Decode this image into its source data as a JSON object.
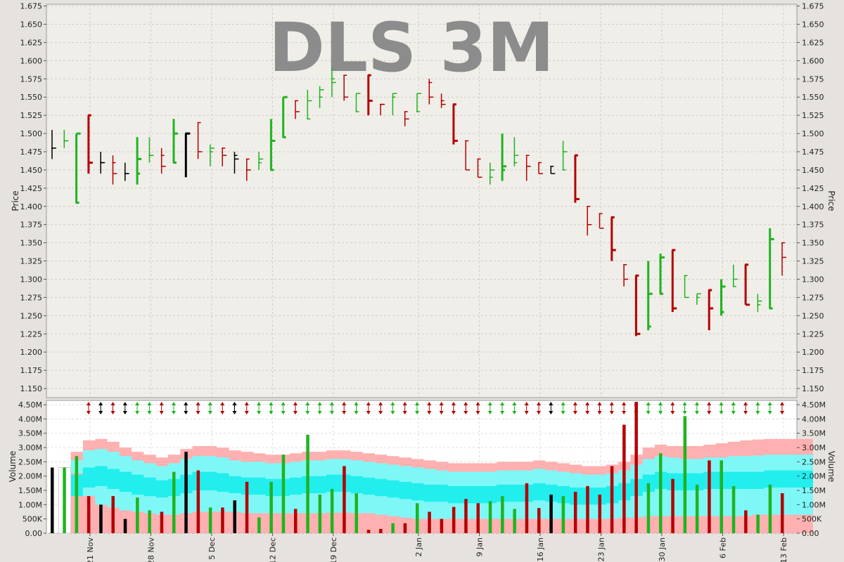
{
  "chart_data": [
    {
      "type": "ohlc",
      "title": "DLS 3M",
      "ylabel": "Price",
      "ylim": [
        1.1375,
        1.6775
      ],
      "yticks": [
        1.15,
        1.175,
        1.2,
        1.225,
        1.25,
        1.275,
        1.3,
        1.325,
        1.35,
        1.375,
        1.4,
        1.425,
        1.45,
        1.475,
        1.5,
        1.525,
        1.55,
        1.575,
        1.6,
        1.625,
        1.65,
        1.675
      ],
      "grid": true,
      "colors": {
        "up": "#1eb41e",
        "down": "#b40000",
        "neutral": "#000000"
      },
      "bars": [
        {
          "o": 1.48,
          "h": 1.505,
          "l": 1.465,
          "c": 1.48,
          "d": "n"
        },
        {
          "o": 1.49,
          "h": 1.505,
          "l": 1.48,
          "c": 1.49,
          "d": "u"
        },
        {
          "o": 1.405,
          "h": 1.5,
          "l": 1.405,
          "c": 1.5,
          "d": "u"
        },
        {
          "o": 1.525,
          "h": 1.525,
          "l": 1.445,
          "c": 1.46,
          "d": "r"
        },
        {
          "o": 1.46,
          "h": 1.475,
          "l": 1.445,
          "c": 1.46,
          "d": "n"
        },
        {
          "o": 1.46,
          "h": 1.47,
          "l": 1.43,
          "c": 1.445,
          "d": "r"
        },
        {
          "o": 1.445,
          "h": 1.46,
          "l": 1.435,
          "c": 1.445,
          "d": "n"
        },
        {
          "o": 1.445,
          "h": 1.495,
          "l": 1.43,
          "c": 1.465,
          "d": "u"
        },
        {
          "o": 1.47,
          "h": 1.495,
          "l": 1.46,
          "c": 1.47,
          "d": "u"
        },
        {
          "o": 1.47,
          "h": 1.48,
          "l": 1.445,
          "c": 1.455,
          "d": "r"
        },
        {
          "o": 1.46,
          "h": 1.52,
          "l": 1.46,
          "c": 1.5,
          "d": "u"
        },
        {
          "o": 1.5,
          "h": 1.5,
          "l": 1.44,
          "c": 1.5,
          "d": "n"
        },
        {
          "o": 1.515,
          "h": 1.515,
          "l": 1.465,
          "c": 1.475,
          "d": "r"
        },
        {
          "o": 1.475,
          "h": 1.485,
          "l": 1.455,
          "c": 1.48,
          "d": "u"
        },
        {
          "o": 1.48,
          "h": 1.48,
          "l": 1.455,
          "c": 1.47,
          "d": "r"
        },
        {
          "o": 1.47,
          "h": 1.475,
          "l": 1.445,
          "c": 1.465,
          "d": "n"
        },
        {
          "o": 1.465,
          "h": 1.465,
          "l": 1.435,
          "c": 1.45,
          "d": "r"
        },
        {
          "o": 1.46,
          "h": 1.475,
          "l": 1.45,
          "c": 1.465,
          "d": "u"
        },
        {
          "o": 1.45,
          "h": 1.52,
          "l": 1.45,
          "c": 1.49,
          "d": "u"
        },
        {
          "o": 1.495,
          "h": 1.55,
          "l": 1.495,
          "c": 1.55,
          "d": "u"
        },
        {
          "o": 1.545,
          "h": 1.545,
          "l": 1.52,
          "c": 1.53,
          "d": "r"
        },
        {
          "o": 1.52,
          "h": 1.56,
          "l": 1.52,
          "c": 1.545,
          "d": "u"
        },
        {
          "o": 1.55,
          "h": 1.565,
          "l": 1.535,
          "c": 1.56,
          "d": "u"
        },
        {
          "o": 1.575,
          "h": 1.59,
          "l": 1.55,
          "c": 1.57,
          "d": "u"
        },
        {
          "o": 1.58,
          "h": 1.58,
          "l": 1.545,
          "c": 1.55,
          "d": "r"
        },
        {
          "o": 1.53,
          "h": 1.555,
          "l": 1.53,
          "c": 1.555,
          "d": "u"
        },
        {
          "o": 1.58,
          "h": 1.58,
          "l": 1.525,
          "c": 1.545,
          "d": "r"
        },
        {
          "o": 1.54,
          "h": 1.54,
          "l": 1.525,
          "c": 1.54,
          "d": "r"
        },
        {
          "o": 1.55,
          "h": 1.555,
          "l": 1.525,
          "c": 1.555,
          "d": "u"
        },
        {
          "o": 1.53,
          "h": 1.53,
          "l": 1.51,
          "c": 1.52,
          "d": "r"
        },
        {
          "o": 1.53,
          "h": 1.555,
          "l": 1.53,
          "c": 1.555,
          "d": "u"
        },
        {
          "o": 1.57,
          "h": 1.575,
          "l": 1.54,
          "c": 1.55,
          "d": "r"
        },
        {
          "o": 1.545,
          "h": 1.555,
          "l": 1.535,
          "c": 1.54,
          "d": "r"
        },
        {
          "o": 1.54,
          "h": 1.54,
          "l": 1.485,
          "c": 1.49,
          "d": "r"
        },
        {
          "o": 1.49,
          "h": 1.49,
          "l": 1.45,
          "c": 1.45,
          "d": "r"
        },
        {
          "o": 1.465,
          "h": 1.465,
          "l": 1.44,
          "c": 1.44,
          "d": "r"
        },
        {
          "o": 1.44,
          "h": 1.46,
          "l": 1.43,
          "c": 1.45,
          "d": "u"
        },
        {
          "o": 1.45,
          "h": 1.5,
          "l": 1.435,
          "c": 1.455,
          "d": "u"
        },
        {
          "o": 1.46,
          "h": 1.495,
          "l": 1.455,
          "c": 1.47,
          "d": "u"
        },
        {
          "o": 1.47,
          "h": 1.47,
          "l": 1.435,
          "c": 1.455,
          "d": "r"
        },
        {
          "o": 1.46,
          "h": 1.46,
          "l": 1.445,
          "c": 1.445,
          "d": "r"
        },
        {
          "o": 1.455,
          "h": 1.455,
          "l": 1.445,
          "c": 1.445,
          "d": "n"
        },
        {
          "o": 1.45,
          "h": 1.49,
          "l": 1.45,
          "c": 1.475,
          "d": "u"
        },
        {
          "o": 1.47,
          "h": 1.47,
          "l": 1.405,
          "c": 1.41,
          "d": "r"
        },
        {
          "o": 1.4,
          "h": 1.4,
          "l": 1.36,
          "c": 1.375,
          "d": "r"
        },
        {
          "o": 1.39,
          "h": 1.39,
          "l": 1.37,
          "c": 1.37,
          "d": "r"
        },
        {
          "o": 1.385,
          "h": 1.385,
          "l": 1.325,
          "c": 1.34,
          "d": "r"
        },
        {
          "o": 1.32,
          "h": 1.32,
          "l": 1.29,
          "c": 1.3,
          "d": "r"
        },
        {
          "o": 1.305,
          "h": 1.305,
          "l": 1.222,
          "c": 1.225,
          "d": "r"
        },
        {
          "o": 1.235,
          "h": 1.325,
          "l": 1.23,
          "c": 1.28,
          "d": "u"
        },
        {
          "o": 1.28,
          "h": 1.335,
          "l": 1.28,
          "c": 1.33,
          "d": "u"
        },
        {
          "o": 1.34,
          "h": 1.34,
          "l": 1.255,
          "c": 1.26,
          "d": "r"
        },
        {
          "o": 1.305,
          "h": 1.305,
          "l": 1.275,
          "c": 1.275,
          "d": "u"
        },
        {
          "o": 1.275,
          "h": 1.28,
          "l": 1.265,
          "c": 1.28,
          "d": "u"
        },
        {
          "o": 1.285,
          "h": 1.285,
          "l": 1.23,
          "c": 1.26,
          "d": "r"
        },
        {
          "o": 1.255,
          "h": 1.3,
          "l": 1.25,
          "c": 1.29,
          "d": "u"
        },
        {
          "o": 1.29,
          "h": 1.32,
          "l": 1.29,
          "c": 1.3,
          "d": "u"
        },
        {
          "o": 1.32,
          "h": 1.32,
          "l": 1.265,
          "c": 1.265,
          "d": "r"
        },
        {
          "o": 1.265,
          "h": 1.28,
          "l": 1.255,
          "c": 1.27,
          "d": "u"
        },
        {
          "o": 1.26,
          "h": 1.37,
          "l": 1.26,
          "c": 1.355,
          "d": "u"
        },
        {
          "o": 1.35,
          "h": 1.35,
          "l": 1.305,
          "c": 1.33,
          "d": "r"
        }
      ]
    },
    {
      "type": "bar",
      "ylabel": "Volume",
      "ylim": [
        0,
        4.65
      ],
      "yticks": [
        "0.00",
        "500K",
        "1.00M",
        "1.50M",
        "2.00M",
        "2.50M",
        "3.00M",
        "3.50M",
        "4.00M",
        "4.50M"
      ],
      "ytick_values": [
        0,
        0.5,
        1.0,
        1.5,
        2.0,
        2.5,
        3.0,
        3.5,
        4.0,
        4.5
      ],
      "unit": "millions",
      "xticks": [
        "21 Nov",
        "28 Nov",
        "5 Dec",
        "12 Dec",
        "19 Dec",
        "2 Jan",
        "9 Jan",
        "16 Jan",
        "23 Jan",
        "30 Jan",
        "6 Feb",
        "13 Feb"
      ],
      "xtick_bar_index": [
        3,
        8,
        13,
        18,
        23,
        30,
        35,
        40,
        45,
        50,
        55,
        60
      ],
      "colors": {
        "up": "#1eb41e",
        "down": "#b40000",
        "neutral": "#000000",
        "band_outer": "#ffb0b0",
        "band_mid": "#7ff7f7",
        "band_inner": "#22eeee"
      },
      "values": [
        2.3,
        2.3,
        2.7,
        1.3,
        1.0,
        1.3,
        0.5,
        1.25,
        0.8,
        0.75,
        2.15,
        2.85,
        2.2,
        0.9,
        0.9,
        1.15,
        1.8,
        0.55,
        1.8,
        2.75,
        0.85,
        3.45,
        1.35,
        1.55,
        2.35,
        1.4,
        0.12,
        0.15,
        0.35,
        0.35,
        1.05,
        0.75,
        0.5,
        0.92,
        1.2,
        1.05,
        1.12,
        1.3,
        0.85,
        1.75,
        0.88,
        1.35,
        1.3,
        1.45,
        1.65,
        1.35,
        2.35,
        3.8,
        4.6,
        1.75,
        2.8,
        1.9,
        4.1,
        1.7,
        2.55,
        2.55,
        1.65,
        0.8,
        0.65,
        1.7,
        1.4
      ],
      "band_upper_outer": [
        2.85,
        3.25,
        3.3,
        3.2,
        3.0,
        2.85,
        2.75,
        2.65,
        2.75,
        2.95,
        3.05,
        3.05,
        3.0,
        2.9,
        2.85,
        2.8,
        2.75,
        2.75,
        2.8,
        2.85,
        2.85,
        2.9,
        2.9,
        2.85,
        2.8,
        2.75,
        2.7,
        2.65,
        2.6,
        2.55,
        2.5,
        2.45,
        2.45,
        2.45,
        2.45,
        2.5,
        2.5,
        2.5,
        2.55,
        2.5,
        2.45,
        2.4,
        2.35,
        2.35,
        2.4,
        2.5,
        2.75,
        3.0,
        3.1,
        3.05,
        3.05,
        3.05,
        3.1,
        3.15,
        3.2,
        3.25,
        3.28,
        3.3,
        3.3,
        3.3,
        3.3
      ],
      "band_upper": [
        2.55,
        2.9,
        2.95,
        2.85,
        2.7,
        2.55,
        2.45,
        2.35,
        2.45,
        2.6,
        2.7,
        2.7,
        2.65,
        2.55,
        2.5,
        2.5,
        2.45,
        2.45,
        2.5,
        2.55,
        2.55,
        2.6,
        2.6,
        2.55,
        2.5,
        2.45,
        2.4,
        2.35,
        2.3,
        2.25,
        2.2,
        2.15,
        2.15,
        2.15,
        2.15,
        2.2,
        2.2,
        2.2,
        2.25,
        2.2,
        2.15,
        2.1,
        2.05,
        2.05,
        2.1,
        2.2,
        2.4,
        2.6,
        2.7,
        2.65,
        2.6,
        2.6,
        2.65,
        2.65,
        2.7,
        2.7,
        2.72,
        2.75,
        2.75,
        2.75,
        2.75
      ],
      "band_inner_top": [
        2.05,
        2.3,
        2.35,
        2.25,
        2.15,
        2.05,
        1.95,
        1.85,
        1.9,
        2.05,
        2.15,
        2.15,
        2.1,
        2.0,
        1.95,
        1.95,
        1.9,
        1.9,
        1.95,
        2.0,
        2.0,
        2.05,
        2.05,
        2.0,
        1.95,
        1.9,
        1.85,
        1.8,
        1.75,
        1.7,
        1.7,
        1.65,
        1.65,
        1.65,
        1.65,
        1.7,
        1.7,
        1.7,
        1.75,
        1.7,
        1.65,
        1.6,
        1.6,
        1.6,
        1.65,
        1.75,
        1.9,
        2.05,
        2.15,
        2.1,
        2.1,
        2.1,
        2.15,
        2.15,
        2.15,
        2.15,
        2.15,
        2.2,
        2.2,
        2.2,
        2.2
      ],
      "band_inner_bottom": [
        1.3,
        1.6,
        1.65,
        1.55,
        1.45,
        1.35,
        1.3,
        1.25,
        1.3,
        1.4,
        1.5,
        1.5,
        1.45,
        1.4,
        1.35,
        1.35,
        1.3,
        1.3,
        1.35,
        1.4,
        1.4,
        1.45,
        1.45,
        1.4,
        1.35,
        1.3,
        1.25,
        1.2,
        1.15,
        1.1,
        1.1,
        1.05,
        1.05,
        1.05,
        1.05,
        1.1,
        1.1,
        1.1,
        1.15,
        1.1,
        1.05,
        1.0,
        1.0,
        1.0,
        1.05,
        1.15,
        1.3,
        1.45,
        1.55,
        1.5,
        1.5,
        1.5,
        1.55,
        1.55,
        1.55,
        1.55,
        1.55,
        1.6,
        1.6,
        1.6,
        1.6
      ],
      "band_lower": [
        2.1,
        1.3,
        1.0,
        0.9,
        0.8,
        0.75,
        0.7,
        0.65,
        0.65,
        0.7,
        0.75,
        0.75,
        0.75,
        0.75,
        0.7,
        0.7,
        0.7,
        0.7,
        0.7,
        0.7,
        0.7,
        0.72,
        0.72,
        0.7,
        0.7,
        0.65,
        0.6,
        0.55,
        0.5,
        0.5,
        0.5,
        0.5,
        0.5,
        0.5,
        0.5,
        0.5,
        0.5,
        0.5,
        0.5,
        0.5,
        0.5,
        0.5,
        0.5,
        0.5,
        0.5,
        0.55,
        0.55,
        0.6,
        0.6,
        0.6,
        0.6,
        0.6,
        0.6,
        0.6,
        0.6,
        0.6,
        0.65,
        0.65,
        0.65,
        0.65,
        0.65
      ]
    }
  ]
}
